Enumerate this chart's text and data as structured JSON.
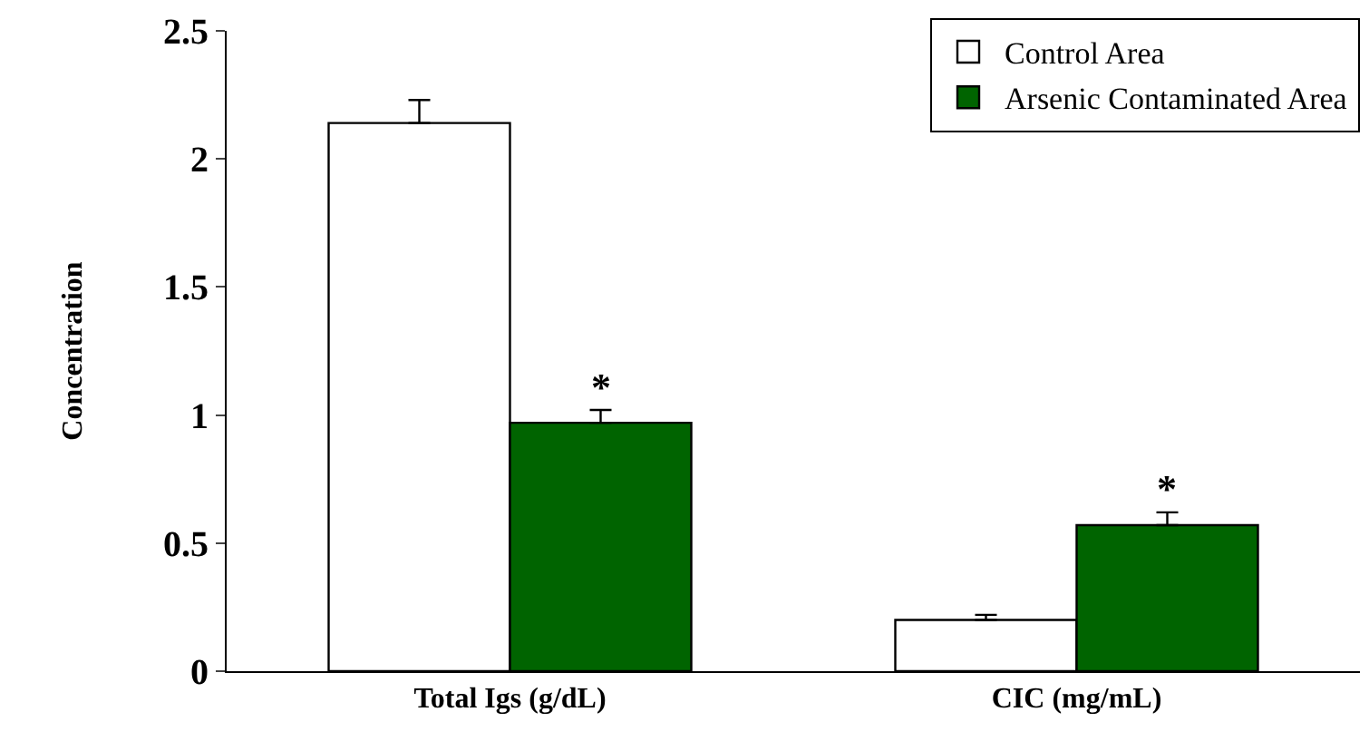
{
  "chart_data": {
    "type": "bar",
    "ylabel": "Concentration",
    "categories": [
      "Total Igs (g/dL)",
      "CIC (mg/mL)"
    ],
    "series": [
      {
        "name": "Control Area",
        "color": "#ffffff",
        "values": [
          2.14,
          0.2
        ],
        "errors": [
          [
            2.14,
            2.23
          ],
          [
            0.2,
            0.22
          ]
        ]
      },
      {
        "name": "Arsenic Contaminated Area",
        "color": "#006400",
        "values": [
          0.97,
          0.57
        ],
        "errors": [
          [
            0.97,
            1.02
          ],
          [
            0.57,
            0.62
          ]
        ]
      }
    ],
    "annotations": [
      {
        "text": "*",
        "x": "Total Igs (g/dL)",
        "y": 0.97
      },
      {
        "text": "*",
        "x": "CIC (mg/mL)",
        "y": 0.57
      }
    ],
    "ylim": [
      0,
      2.5
    ],
    "yticks": [
      0,
      0.5,
      1,
      1.5,
      2,
      2.5
    ],
    "grid": false,
    "legend": "top right"
  }
}
